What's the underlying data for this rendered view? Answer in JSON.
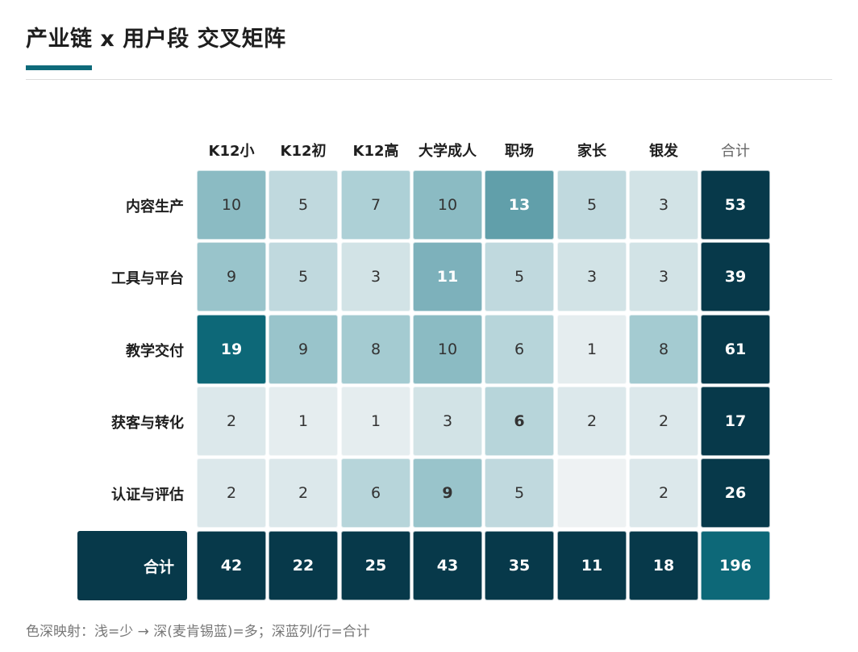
{
  "page": {
    "title": "产业链 x 用户段 交叉矩阵",
    "note": "色深映射：浅=少 → 深(麦肯锡蓝)=多；深蓝列/行=合计"
  },
  "colors": {
    "accent": "#0e6a7a",
    "total_fill": "#07394a",
    "grand_total_fill": "#0d6878",
    "scale_low": "#eef2f3",
    "scale_high": "#0d6878"
  },
  "chart_data": {
    "type": "heatmap",
    "title": "产业链 x 用户段 交叉矩阵",
    "columns": [
      "K12小",
      "K12初",
      "K12高",
      "大学成人",
      "职场",
      "家长",
      "银发"
    ],
    "total_label": "合计",
    "rows": [
      {
        "label": "内容生产",
        "values": [
          10,
          5,
          7,
          10,
          13,
          5,
          3
        ],
        "total": 53
      },
      {
        "label": "工具与平台",
        "values": [
          9,
          5,
          3,
          11,
          5,
          3,
          3
        ],
        "total": 39
      },
      {
        "label": "教学交付",
        "values": [
          19,
          9,
          8,
          10,
          6,
          1,
          8
        ],
        "total": 61
      },
      {
        "label": "获客与转化",
        "values": [
          2,
          1,
          1,
          3,
          6,
          2,
          2
        ],
        "total": 17
      },
      {
        "label": "认证与评估",
        "values": [
          2,
          2,
          6,
          9,
          5,
          null,
          2
        ],
        "total": 26
      }
    ],
    "column_totals": [
      42,
      22,
      25,
      43,
      35,
      11,
      18
    ],
    "grand_total": 196,
    "bold_cells": [
      [
        0,
        4
      ],
      [
        1,
        3
      ],
      [
        2,
        0
      ],
      [
        3,
        4
      ],
      [
        4,
        3
      ]
    ]
  }
}
